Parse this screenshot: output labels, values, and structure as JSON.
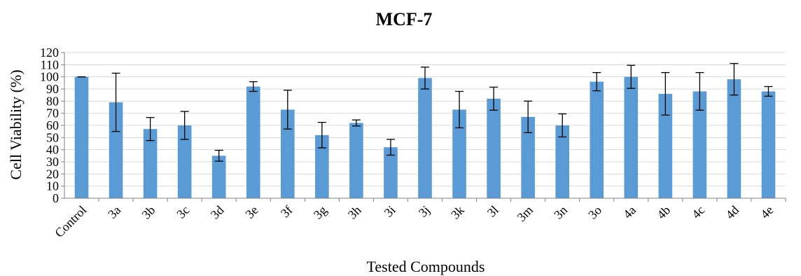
{
  "chart_data": {
    "type": "bar",
    "title": "MCF-7",
    "xlabel": "Tested Compounds",
    "ylabel": "Cell Viability (%)",
    "ylim": [
      0,
      120
    ],
    "yticks": [
      0,
      10,
      20,
      30,
      40,
      50,
      60,
      70,
      80,
      90,
      100,
      110,
      120
    ],
    "grid": true,
    "legend": "none",
    "bar_color": "#5b9bd5",
    "categories": [
      "Control",
      "3a",
      "3b",
      "3c",
      "3d",
      "3e",
      "3f",
      "3g",
      "3h",
      "3i",
      "3j",
      "3k",
      "3l",
      "3m",
      "3n",
      "3o",
      "4a",
      "4b",
      "4c",
      "4d",
      "4e"
    ],
    "values": [
      100,
      79,
      57,
      60,
      35,
      92,
      73,
      52,
      62,
      42,
      99,
      73,
      82,
      67,
      60,
      96,
      100,
      86,
      88,
      98,
      88
    ],
    "errors": [
      0,
      24,
      9.5,
      11.5,
      4.5,
      4,
      16,
      10.5,
      2.5,
      6.5,
      9,
      15,
      9.5,
      13,
      9.5,
      7.5,
      9.5,
      17.5,
      15.5,
      13,
      4
    ]
  }
}
